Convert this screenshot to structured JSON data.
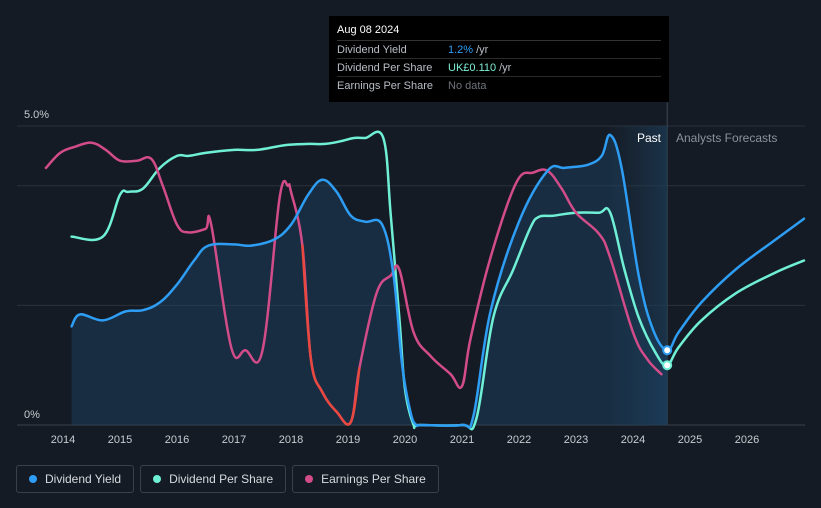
{
  "chart_data": {
    "type": "line",
    "title": "",
    "y_top_label": "5.0%",
    "y_bottom_label": "0%",
    "ylim": [
      0,
      5.0
    ],
    "x_ticks": [
      "2014",
      "2015",
      "2016",
      "2017",
      "2018",
      "2019",
      "2020",
      "2021",
      "2022",
      "2023",
      "2024",
      "2025",
      "2026"
    ],
    "past_label": "Past",
    "forecast_label": "Analysts Forecasts",
    "forecast_start": 2024.6,
    "series": [
      {
        "name": "Dividend Yield",
        "color": "#2e9df4",
        "x": [
          2014.15,
          2014.3,
          2014.7,
          2015.1,
          2015.4,
          2015.7,
          2016.0,
          2016.3,
          2016.55,
          2017.0,
          2017.3,
          2017.7,
          2018.0,
          2018.3,
          2018.55,
          2018.8,
          2019.05,
          2019.3,
          2019.6,
          2019.8,
          2019.95,
          2020.1,
          2020.2,
          2020.3,
          2021.0,
          2021.2,
          2021.5,
          2022.0,
          2022.5,
          2022.8,
          2023.2,
          2023.45,
          2023.6,
          2023.8,
          2024.1,
          2024.35,
          2024.6,
          2024.8,
          2025.2,
          2025.8,
          2026.5,
          2027.0
        ],
        "y": [
          1.65,
          1.85,
          1.75,
          1.9,
          1.92,
          2.05,
          2.35,
          2.75,
          3.0,
          3.02,
          3.0,
          3.1,
          3.35,
          3.85,
          4.1,
          3.9,
          3.5,
          3.4,
          3.35,
          2.5,
          1.0,
          0.2,
          0.0,
          0.0,
          0.0,
          0.15,
          1.9,
          3.4,
          4.25,
          4.3,
          4.35,
          4.5,
          4.85,
          4.3,
          2.5,
          1.6,
          1.25,
          1.55,
          2.05,
          2.6,
          3.1,
          3.45
        ]
      },
      {
        "name": "Dividend Per Share",
        "color": "#6ff0d6",
        "x": [
          2014.15,
          2014.7,
          2015.0,
          2015.15,
          2015.4,
          2015.7,
          2016.0,
          2016.2,
          2016.5,
          2017.0,
          2017.4,
          2017.9,
          2018.3,
          2018.6,
          2018.9,
          2019.1,
          2019.3,
          2019.62,
          2019.75,
          2019.9,
          2020.0,
          2020.15,
          2020.25,
          2021.0,
          2021.25,
          2021.55,
          2021.9,
          2022.2,
          2022.35,
          2022.6,
          2023.0,
          2023.4,
          2023.6,
          2023.85,
          2024.1,
          2024.4,
          2024.6,
          2024.8,
          2025.2,
          2025.8,
          2026.5,
          2027.0
        ],
        "y": [
          3.15,
          3.15,
          3.85,
          3.9,
          3.95,
          4.3,
          4.5,
          4.5,
          4.55,
          4.6,
          4.6,
          4.68,
          4.7,
          4.7,
          4.75,
          4.8,
          4.8,
          4.8,
          3.5,
          1.8,
          0.6,
          0.0,
          0.0,
          0.0,
          0.1,
          1.8,
          2.6,
          3.3,
          3.48,
          3.5,
          3.55,
          3.55,
          3.55,
          2.6,
          1.8,
          1.2,
          1.0,
          1.3,
          1.75,
          2.2,
          2.55,
          2.75
        ]
      },
      {
        "name": "Earnings Per Share",
        "color": "#d24c8a",
        "x": [
          2013.7,
          2013.95,
          2014.2,
          2014.5,
          2014.75,
          2015.0,
          2015.3,
          2015.55,
          2015.75,
          2016.0,
          2016.2,
          2016.5,
          2016.6,
          2016.95,
          2017.2,
          2017.5,
          2017.8,
          2017.95,
          2018.0,
          2018.2,
          2018.35,
          2018.55,
          2018.8,
          2019.05,
          2019.2,
          2019.5,
          2019.75,
          2019.9,
          2020.15,
          2020.45,
          2020.8,
          2021.0,
          2021.15,
          2021.5,
          2021.95,
          2022.25,
          2022.5,
          2022.75,
          2023.0,
          2023.4,
          2023.6,
          2024.0,
          2024.25,
          2024.5
        ],
        "y": [
          4.3,
          4.55,
          4.65,
          4.72,
          4.6,
          4.42,
          4.42,
          4.45,
          4.0,
          3.35,
          3.22,
          3.28,
          3.35,
          1.3,
          1.25,
          1.25,
          3.8,
          4.0,
          3.9,
          3.0,
          1.1,
          0.55,
          0.22,
          0.05,
          0.95,
          2.2,
          2.5,
          2.6,
          1.55,
          1.15,
          0.85,
          0.65,
          1.45,
          2.8,
          4.05,
          4.22,
          4.25,
          3.95,
          3.55,
          3.2,
          2.8,
          1.55,
          1.1,
          0.85
        ]
      }
    ]
  },
  "tooltip": {
    "date": "Aug 08 2024",
    "rows": [
      {
        "label": "Dividend Yield",
        "value": "1.2%",
        "unit": "/yr"
      },
      {
        "label": "Dividend Per Share",
        "value": "UK£0.110",
        "unit": "/yr"
      },
      {
        "label": "Earnings Per Share",
        "value": "No data",
        "unit": ""
      }
    ]
  },
  "legend": [
    {
      "label": "Dividend Yield",
      "color": "#2e9df4"
    },
    {
      "label": "Dividend Per Share",
      "color": "#6ff0d6"
    },
    {
      "label": "Earnings Per Share",
      "color": "#d24c8a"
    }
  ],
  "colors": {
    "background": "#151b24",
    "eps_negative": "#e8483f",
    "grid": "#2c323b"
  }
}
